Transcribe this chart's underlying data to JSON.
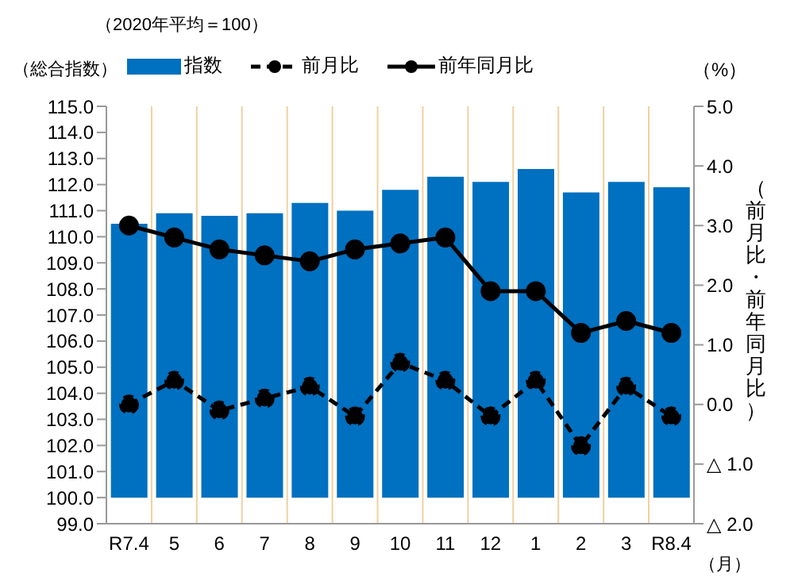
{
  "chart_data": {
    "type": "bar",
    "title": "（2020年平均＝100）",
    "ylabel": "（総合指数）",
    "y2label": "（前月比・前年同月比）",
    "xlabel": "（月）",
    "annotations": [
      "（%）"
    ],
    "categories": [
      "R7.4",
      "5",
      "6",
      "7",
      "8",
      "9",
      "10",
      "11",
      "12",
      "1",
      "2",
      "3",
      "R8.4"
    ],
    "series": [
      {
        "name": "指数",
        "type": "bar",
        "color": "#0070c0",
        "base": [
          100,
          100,
          100,
          100,
          100,
          100,
          100,
          100,
          100,
          100,
          100,
          100,
          100
        ],
        "values": [
          10.5,
          10.9,
          10.8,
          10.9,
          11.3,
          11.0,
          11.8,
          12.3,
          12.1,
          12.6,
          11.7,
          12.1,
          11.9
        ]
      },
      {
        "name": "前月比",
        "type": "line",
        "axis": "y2",
        "color": "#000000",
        "line_style": "dashed",
        "marker": "circle",
        "values": [
          0.0,
          0.4,
          -0.1,
          0.1,
          0.3,
          -0.2,
          0.7,
          0.4,
          -0.2,
          0.4,
          -0.7,
          0.3,
          -0.2
        ]
      },
      {
        "name": "前年同月比",
        "type": "line",
        "axis": "y2",
        "color": "#000000",
        "line_style": "solid",
        "marker": "circle",
        "values": [
          3.0,
          2.8,
          2.6,
          2.5,
          2.4,
          2.6,
          2.7,
          2.8,
          1.9,
          1.9,
          1.2,
          1.4,
          1.2
        ]
      }
    ],
    "ylim": [
      99,
      115
    ],
    "yticks": [
      {
        "value": 99,
        "label": "99.0"
      },
      {
        "value": 100,
        "label": "100.0"
      },
      {
        "value": 101,
        "label": "101.0"
      },
      {
        "value": 102,
        "label": "102.0"
      },
      {
        "value": 103,
        "label": "103.0"
      },
      {
        "value": 104,
        "label": "104.0"
      },
      {
        "value": 105,
        "label": "105.0"
      },
      {
        "value": 106,
        "label": "106.0"
      },
      {
        "value": 107,
        "label": "107.0"
      },
      {
        "value": 108,
        "label": "108.0"
      },
      {
        "value": 109,
        "label": "109.0"
      },
      {
        "value": 110,
        "label": "110.0"
      },
      {
        "value": 111,
        "label": "111.0"
      },
      {
        "value": 112,
        "label": "112.0"
      },
      {
        "value": 113,
        "label": "113.0"
      },
      {
        "value": 114,
        "label": "114.0"
      },
      {
        "value": 115,
        "label": "115.0"
      }
    ],
    "y2lim": [
      -2,
      5
    ],
    "y2ticks": [
      {
        "value": -2,
        "label": "△ 2.0"
      },
      {
        "value": -1,
        "label": "△ 1.0"
      },
      {
        "value": 0,
        "label": "0.0"
      },
      {
        "value": 1,
        "label": "1.0"
      },
      {
        "value": 2,
        "label": "2.0"
      },
      {
        "value": 3,
        "label": "3.0"
      },
      {
        "value": 4,
        "label": "4.0"
      },
      {
        "value": 5,
        "label": "5.0"
      }
    ],
    "grid": "x",
    "legend": "top"
  }
}
